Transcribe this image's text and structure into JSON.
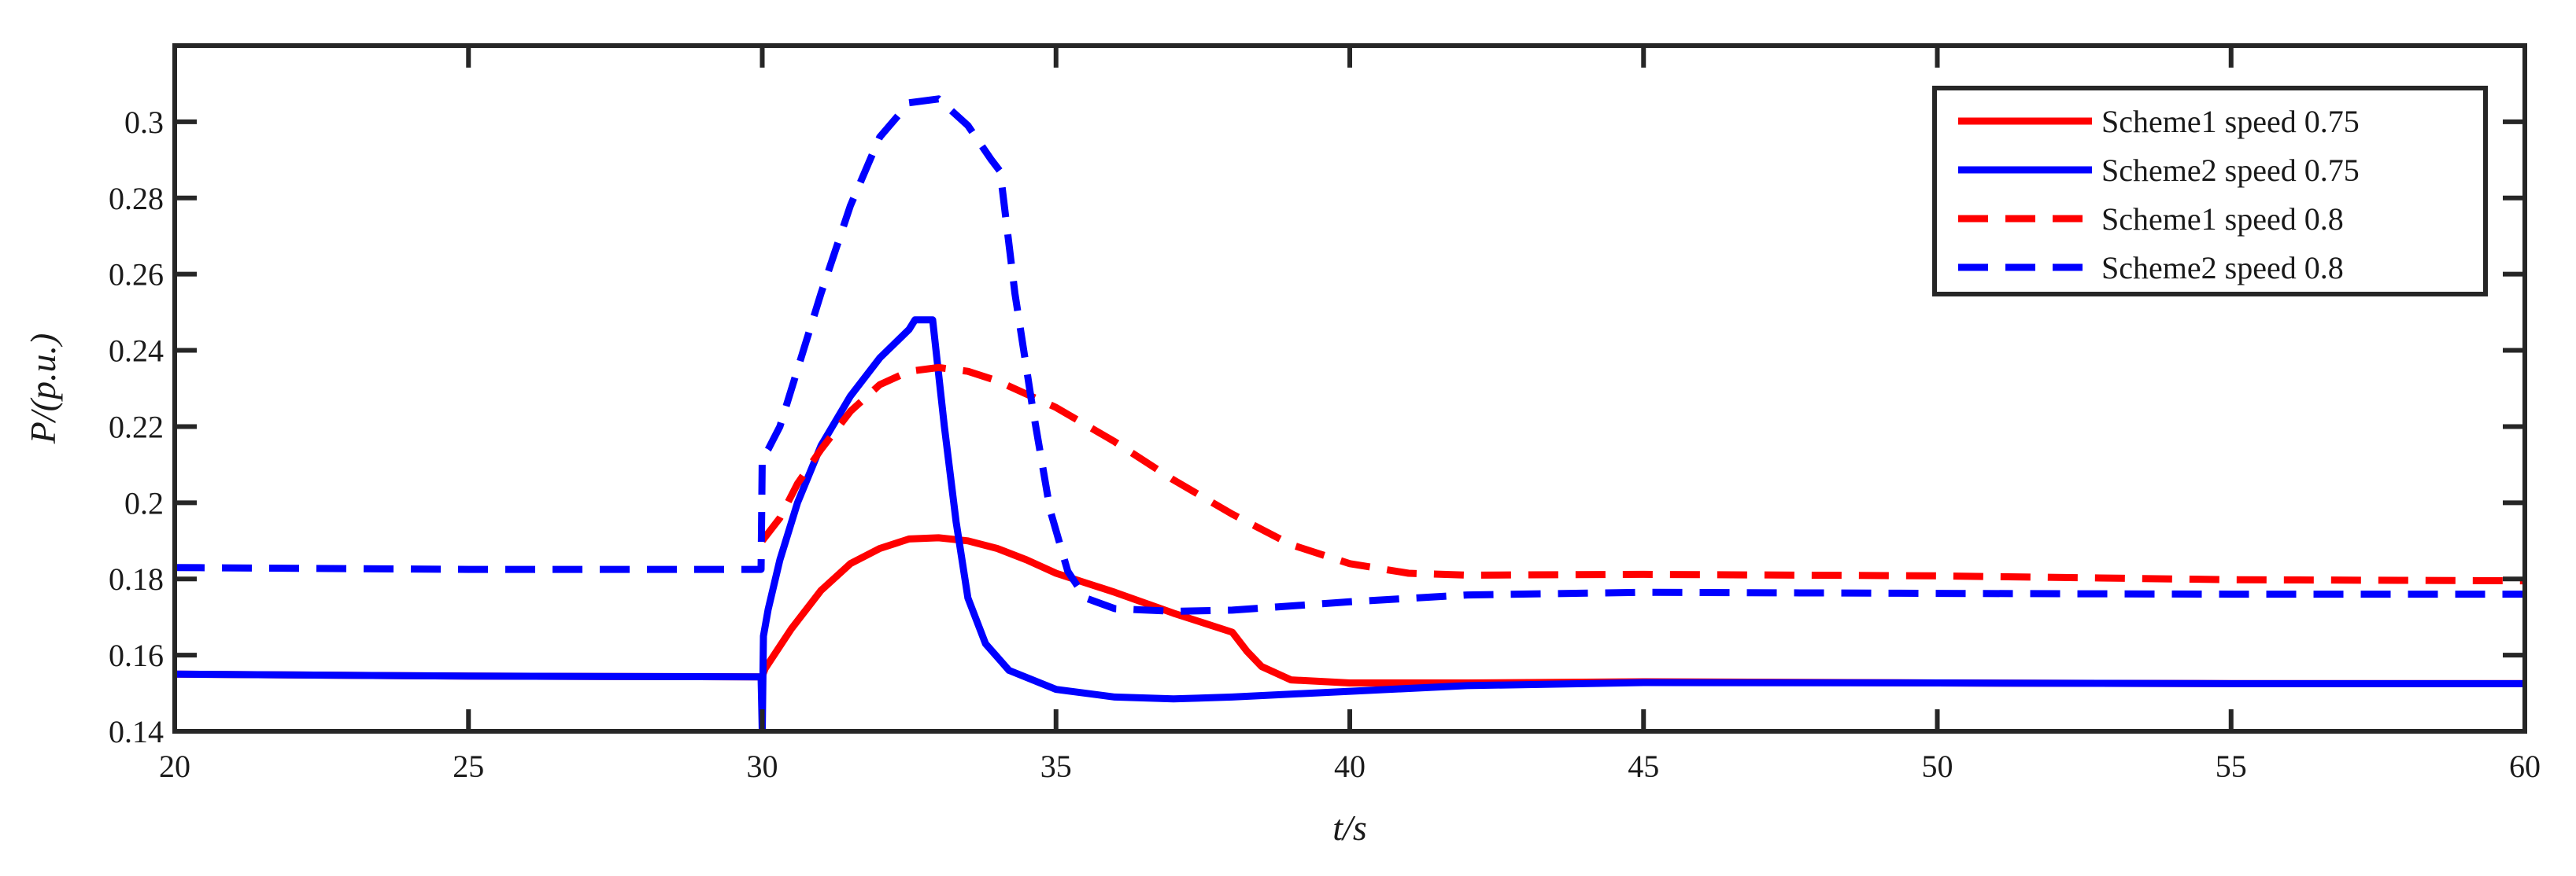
{
  "chart_data": {
    "type": "line",
    "xlabel": "t/s",
    "ylabel": "P/(p.u.)",
    "xlim": [
      20,
      60
    ],
    "ylim": [
      0.14,
      0.32
    ],
    "xticks": [
      20,
      25,
      30,
      35,
      40,
      45,
      50,
      55,
      60
    ],
    "xtick_labels": [
      "20",
      "25",
      "30",
      "35",
      "40",
      "45",
      "50",
      "55",
      "60"
    ],
    "yticks": [
      0.14,
      0.16,
      0.18,
      0.2,
      0.22,
      0.24,
      0.26,
      0.28,
      0.3
    ],
    "ytick_labels": [
      "0.14",
      "0.16",
      "0.18",
      "0.2",
      "0.22",
      "0.24",
      "0.26",
      "0.28",
      "0.3"
    ],
    "grid": false,
    "legend_position": "top-right",
    "series": [
      {
        "name": "Scheme1 speed 0.75",
        "color": "#ff0000",
        "dash": "solid",
        "points": [
          [
            20,
            0.155
          ],
          [
            25,
            0.1545
          ],
          [
            29.98,
            0.1543
          ],
          [
            30.0,
            0.1545
          ],
          [
            30.05,
            0.1565
          ],
          [
            30.2,
            0.16
          ],
          [
            30.5,
            0.167
          ],
          [
            31,
            0.177
          ],
          [
            31.5,
            0.184
          ],
          [
            32,
            0.188
          ],
          [
            32.5,
            0.1905
          ],
          [
            33,
            0.1908
          ],
          [
            33.5,
            0.19
          ],
          [
            34,
            0.188
          ],
          [
            34.5,
            0.185
          ],
          [
            35,
            0.1815
          ],
          [
            35.5,
            0.179
          ],
          [
            36,
            0.1765
          ],
          [
            37,
            0.171
          ],
          [
            38,
            0.166
          ],
          [
            38.25,
            0.161
          ],
          [
            38.5,
            0.157
          ],
          [
            39,
            0.1535
          ],
          [
            40,
            0.1527
          ],
          [
            42,
            0.1527
          ],
          [
            45,
            0.153
          ],
          [
            50,
            0.1527
          ],
          [
            55,
            0.1525
          ],
          [
            60,
            0.1525
          ]
        ]
      },
      {
        "name": "Scheme2 speed 0.75",
        "color": "#0000ff",
        "dash": "solid",
        "points": [
          [
            20,
            0.155
          ],
          [
            25,
            0.1545
          ],
          [
            29.98,
            0.1543
          ],
          [
            30.0,
            0.14
          ],
          [
            30.02,
            0.165
          ],
          [
            30.1,
            0.172
          ],
          [
            30.3,
            0.185
          ],
          [
            30.6,
            0.2
          ],
          [
            31,
            0.215
          ],
          [
            31.5,
            0.228
          ],
          [
            32,
            0.238
          ],
          [
            32.5,
            0.2455
          ],
          [
            32.6,
            0.248
          ],
          [
            32.9,
            0.248
          ],
          [
            33.1,
            0.22
          ],
          [
            33.3,
            0.195
          ],
          [
            33.5,
            0.175
          ],
          [
            33.8,
            0.163
          ],
          [
            34.2,
            0.156
          ],
          [
            35,
            0.151
          ],
          [
            36,
            0.149
          ],
          [
            37,
            0.1485
          ],
          [
            38,
            0.149
          ],
          [
            40,
            0.1505
          ],
          [
            42,
            0.152
          ],
          [
            45,
            0.1528
          ],
          [
            50,
            0.1527
          ],
          [
            55,
            0.1525
          ],
          [
            60,
            0.1525
          ]
        ]
      },
      {
        "name": "Scheme1 speed 0.8",
        "color": "#ff0000",
        "dash": "dashed",
        "points": [
          [
            30.0,
            0.19
          ],
          [
            30.3,
            0.196
          ],
          [
            30.6,
            0.205
          ],
          [
            31,
            0.214
          ],
          [
            31.5,
            0.224
          ],
          [
            32,
            0.231
          ],
          [
            32.5,
            0.2345
          ],
          [
            33,
            0.2355
          ],
          [
            33.5,
            0.2345
          ],
          [
            34,
            0.232
          ],
          [
            35,
            0.225
          ],
          [
            36,
            0.216
          ],
          [
            37,
            0.206
          ],
          [
            38,
            0.197
          ],
          [
            39,
            0.189
          ],
          [
            40,
            0.184
          ],
          [
            41,
            0.1815
          ],
          [
            42,
            0.181
          ],
          [
            45,
            0.1812
          ],
          [
            50,
            0.1808
          ],
          [
            55,
            0.1798
          ],
          [
            60,
            0.1795
          ]
        ]
      },
      {
        "name": "Scheme2 speed 0.8",
        "color": "#0000ff",
        "dash": "dashed",
        "points": [
          [
            20,
            0.183
          ],
          [
            25,
            0.1825
          ],
          [
            29.98,
            0.1825
          ],
          [
            30.0,
            0.212
          ],
          [
            30.1,
            0.214
          ],
          [
            30.3,
            0.22
          ],
          [
            30.6,
            0.235
          ],
          [
            31,
            0.255
          ],
          [
            31.5,
            0.278
          ],
          [
            32,
            0.296
          ],
          [
            32.5,
            0.305
          ],
          [
            33,
            0.306
          ],
          [
            33.5,
            0.299
          ],
          [
            33.9,
            0.29
          ],
          [
            34.05,
            0.287
          ],
          [
            34.3,
            0.255
          ],
          [
            34.6,
            0.225
          ],
          [
            34.9,
            0.198
          ],
          [
            35.2,
            0.182
          ],
          [
            35.5,
            0.175
          ],
          [
            36,
            0.1722
          ],
          [
            37,
            0.1715
          ],
          [
            38,
            0.1718
          ],
          [
            40,
            0.174
          ],
          [
            42,
            0.1758
          ],
          [
            45,
            0.1765
          ],
          [
            50,
            0.1762
          ],
          [
            55,
            0.176
          ],
          [
            60,
            0.176
          ]
        ]
      }
    ]
  }
}
